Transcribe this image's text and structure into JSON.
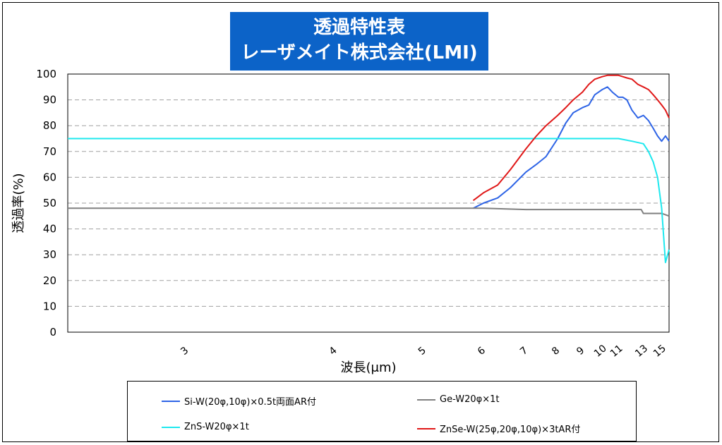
{
  "title": {
    "line1": "透過特性表",
    "line2": "レーザメイト株式会社(LMI)"
  },
  "chart_data": {
    "type": "line",
    "xlabel": "波長(μm)",
    "ylabel": "透過率(%)",
    "ylim": [
      0,
      100
    ],
    "y_ticks": [
      "0",
      "10",
      "20",
      "30",
      "40",
      "50",
      "60",
      "70",
      "80",
      "90",
      "100"
    ],
    "x_axis_scale": "reciprocal (wavenumber-linear)",
    "xlim": [
      2.5,
      16
    ],
    "x_ticks": [
      "3",
      "4",
      "5",
      "6",
      "7",
      "8",
      "9",
      "10",
      "11",
      "13",
      "15"
    ],
    "grid": "horizontal dashed",
    "legend_position": "bottom",
    "series": [
      {
        "name": "Si-W(20φ,10φ)×0.5t両面AR付",
        "color": "#2e64e6",
        "x": [
          5.8,
          6.0,
          6.3,
          6.6,
          7.0,
          7.3,
          7.6,
          8.0,
          8.3,
          8.6,
          9.0,
          9.3,
          9.6,
          10.0,
          10.3,
          10.6,
          11.0,
          11.3,
          11.6,
          12.0,
          12.5,
          13.0,
          13.5,
          14.0,
          14.5,
          15.0,
          15.5,
          16.0
        ],
        "y": [
          48,
          50,
          52,
          56,
          62,
          65,
          68,
          75,
          81,
          85,
          87,
          88,
          92,
          94,
          95,
          93,
          91,
          91,
          90,
          86,
          83,
          84,
          82,
          79,
          76,
          74,
          76,
          74
        ]
      },
      {
        "name": "Ge-W20φ×1t",
        "color": "#808080",
        "x": [
          2.5,
          4.0,
          5.5,
          6.0,
          7.0,
          8.0,
          9.0,
          10.0,
          11.0,
          12.0,
          12.8,
          13.0,
          14.0,
          14.5,
          15.0,
          16.0
        ],
        "y": [
          48,
          48,
          48,
          48,
          47.5,
          47.5,
          47.5,
          47.5,
          47.5,
          47.5,
          47.5,
          46,
          46,
          46,
          46,
          45
        ]
      },
      {
        "name": "ZnS-W20φ×1t",
        "color": "#1ee8ee",
        "x": [
          2.5,
          4.0,
          6.0,
          8.0,
          10.0,
          11.0,
          12.0,
          13.0,
          13.5,
          14.0,
          14.5,
          15.0,
          15.5,
          16.0
        ],
        "y": [
          75,
          75,
          75,
          75,
          75,
          75,
          74,
          73,
          70,
          66,
          60,
          48,
          27,
          32
        ]
      },
      {
        "name": "ZnSe-W(25φ,20φ,10φ)×3tAR付",
        "color": "#e01818",
        "x": [
          5.8,
          6.0,
          6.3,
          6.6,
          7.0,
          7.3,
          7.6,
          8.0,
          8.3,
          8.6,
          9.0,
          9.3,
          9.6,
          10.0,
          10.3,
          10.6,
          11.0,
          11.3,
          11.6,
          12.0,
          12.5,
          13.0,
          13.5,
          14.0,
          14.5,
          15.0,
          15.5,
          16.0
        ],
        "y": [
          51,
          54,
          57,
          63,
          71,
          76,
          80,
          84,
          87,
          90,
          93,
          96,
          98,
          99,
          99.5,
          99.5,
          99.5,
          99,
          98.5,
          98,
          96,
          95,
          94,
          92,
          90,
          88,
          86,
          83
        ]
      }
    ]
  }
}
